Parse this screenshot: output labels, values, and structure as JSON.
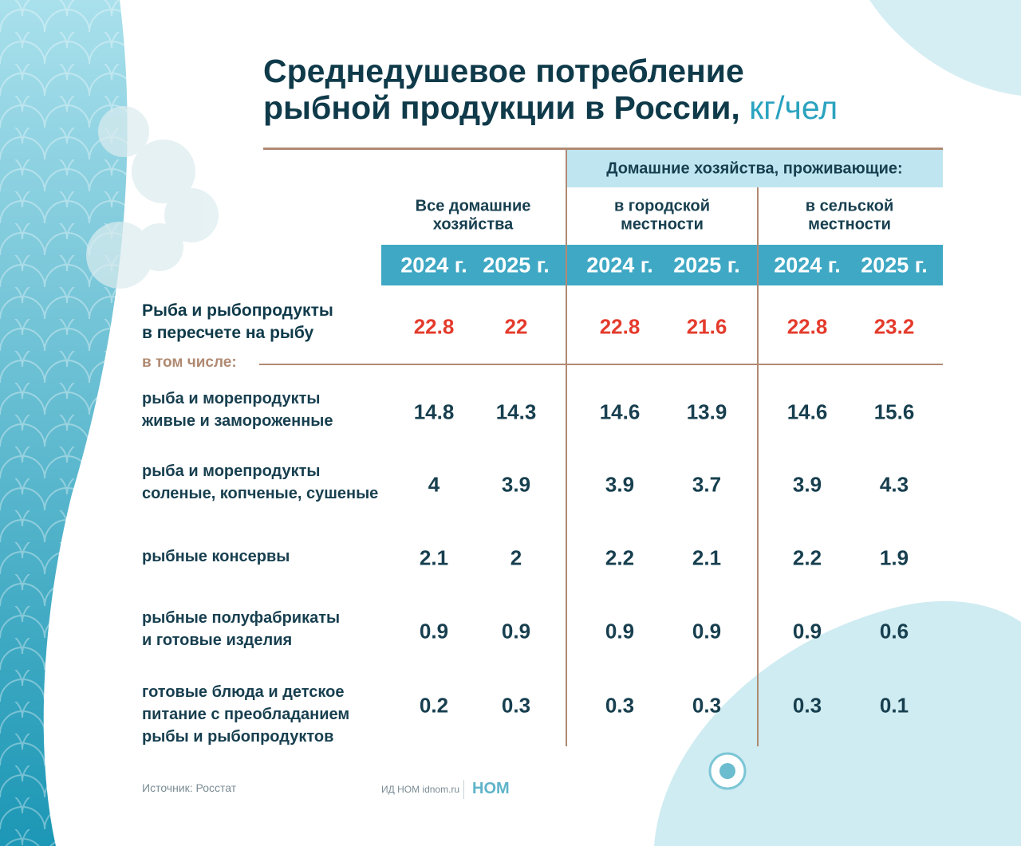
{
  "title": {
    "line1": "Среднедушевое потребление",
    "line2": "рыбной продукции в России,",
    "unit": "кг/чел"
  },
  "table": {
    "group_header": "Домашние хозяйства, проживающие:",
    "columns": [
      [
        "Все домашние",
        "хозяйства"
      ],
      [
        "в городской",
        "местности"
      ],
      [
        "в сельской",
        "местности"
      ]
    ],
    "years": [
      "2024 г.",
      "2025 г.",
      "2024 г.",
      "2025 г.",
      "2024 г.",
      "2025 г."
    ],
    "total": {
      "label": [
        "Рыба и рыбопродукты",
        "в пересчете на рыбу"
      ],
      "values": [
        22.8,
        22,
        22.8,
        21.6,
        22.8,
        23.2
      ]
    },
    "subheader": "в том числе:",
    "rows": [
      {
        "label": [
          "рыба и морепродукты",
          "живые и замороженные"
        ],
        "values": [
          14.8,
          14.3,
          14.6,
          13.9,
          14.6,
          15.6
        ]
      },
      {
        "label": [
          "рыба и морепродукты",
          "соленые, копченые, сушеные"
        ],
        "values": [
          4,
          3.9,
          3.9,
          3.7,
          3.9,
          4.3
        ]
      },
      {
        "label": [
          "рыбные консервы"
        ],
        "values": [
          2.1,
          2,
          2.2,
          2.1,
          2.2,
          1.9
        ]
      },
      {
        "label": [
          "рыбные полуфабрикаты",
          "и готовые изделия"
        ],
        "values": [
          0.9,
          0.9,
          0.9,
          0.9,
          0.9,
          0.6
        ]
      },
      {
        "label": [
          "готовые блюда и детское",
          "питание с преобладанием",
          "рыбы и рыбопродуктов"
        ],
        "values": [
          0.2,
          0.3,
          0.3,
          0.3,
          0.3,
          0.1
        ]
      }
    ]
  },
  "footer": {
    "source": "Источник: Росстат",
    "publisher": "ИД НОМ idnom.ru",
    "logo": "НОМ"
  }
}
